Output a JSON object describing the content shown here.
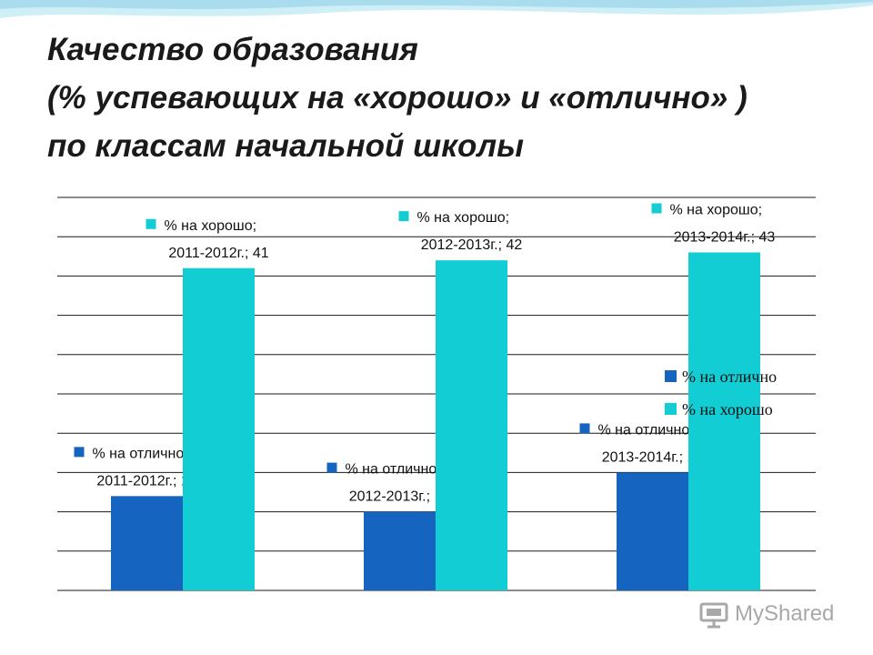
{
  "slide": {
    "title_lines": [
      "Качество образования",
      "(% успевающих на «хорошо» и «отлично» )",
      "по классам начальной школы"
    ],
    "watermark_text": "MyShared"
  },
  "colors": {
    "otlichno": "#1565C0",
    "khorosho": "#12CDD4",
    "grid": "#1a1a1a",
    "wave": "#BFE6F2"
  },
  "chart_data": {
    "type": "bar",
    "title": "",
    "xlabel": "",
    "ylabel": "",
    "categories": [
      "2011-2012г.",
      "2012-2013г.",
      "2013-2014г."
    ],
    "ylim": [
      0,
      50
    ],
    "grid": true,
    "legend_position": "right",
    "series": [
      {
        "name": "% на отлично",
        "color": "#1565C0",
        "values": [
          12,
          10,
          15
        ],
        "data_labels": [
          [
            "% на отлично;",
            "2011-2012г.; 12"
          ],
          [
            "% на отлично;",
            "2012-2013г.; 10"
          ],
          [
            "% на отлично;",
            "2013-2014г.; 15"
          ]
        ]
      },
      {
        "name": "% на хорошо",
        "color": "#12CDD4",
        "values": [
          41,
          42,
          43
        ],
        "data_labels": [
          [
            "% на хорошо;",
            "2011-2012г.; 41"
          ],
          [
            "% на хорошо;",
            "2012-2013г.; 42"
          ],
          [
            "% на хорошо;",
            "2013-2014г.; 43"
          ]
        ]
      }
    ]
  }
}
